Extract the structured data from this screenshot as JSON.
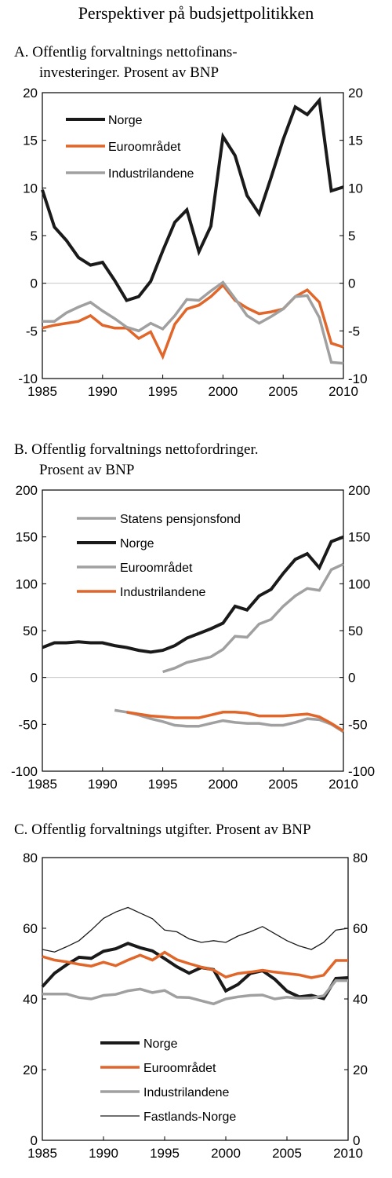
{
  "title": "Perspektiver på budsjettpolitikken",
  "chart_data": [
    {
      "type": "line",
      "title": "A.  Offentlig forvaltnings nettofinans-",
      "title2": "investeringer. Prosent av BNP",
      "xlim": [
        1985,
        2010
      ],
      "ylim": [
        -10,
        20
      ],
      "xticks": [
        "1985",
        "1990",
        "1995",
        "2000",
        "2005",
        "2010"
      ],
      "yticks": [
        "20",
        "15",
        "10",
        "5",
        "0",
        "-5",
        "-10"
      ],
      "grid": false,
      "legend_position": "top-left",
      "x": [
        1985,
        1986,
        1987,
        1988,
        1989,
        1990,
        1991,
        1992,
        1993,
        1994,
        1995,
        1996,
        1997,
        1998,
        1999,
        2000,
        2001,
        2002,
        2003,
        2004,
        2005,
        2006,
        2007,
        2008,
        2009,
        2010
      ],
      "series": [
        {
          "name": "Norge",
          "color": "#1a1a1a",
          "width": 4,
          "values": [
            9.8,
            5.9,
            4.5,
            2.7,
            1.9,
            2.2,
            0.3,
            -1.8,
            -1.4,
            0.2,
            3.4,
            6.4,
            7.7,
            3.3,
            6.0,
            15.4,
            13.4,
            9.2,
            7.3,
            11.1,
            15.1,
            18.5,
            17.7,
            19.2,
            9.7,
            10.1
          ]
        },
        {
          "name": "Euroområdet",
          "color": "#e0662a",
          "width": 3.5,
          "values": [
            -4.7,
            -4.4,
            -4.2,
            -4.0,
            -3.4,
            -4.4,
            -4.7,
            -4.7,
            -5.8,
            -5.1,
            -7.7,
            -4.3,
            -2.7,
            -2.3,
            -1.4,
            -0.2,
            -1.8,
            -2.6,
            -3.2,
            -3.0,
            -2.7,
            -1.4,
            -0.7,
            -2.0,
            -6.3,
            -6.7
          ]
        },
        {
          "name": "Industrilandene",
          "color": "#a0a0a0",
          "width": 3.5,
          "values": [
            -4.0,
            -4.0,
            -3.1,
            -2.5,
            -2.0,
            -2.9,
            -3.7,
            -4.6,
            -5.0,
            -4.2,
            -4.8,
            -3.4,
            -1.7,
            -1.8,
            -0.8,
            0.1,
            -1.6,
            -3.4,
            -4.2,
            -3.5,
            -2.7,
            -1.4,
            -1.3,
            -3.6,
            -8.3,
            -8.4
          ]
        }
      ]
    },
    {
      "type": "line",
      "title": "B.  Offentlig forvaltnings nettofordringer.",
      "title2": "Prosent av BNP",
      "xlim": [
        1985,
        2010
      ],
      "ylim": [
        -100,
        200
      ],
      "xticks": [
        "1985",
        "1990",
        "1995",
        "2000",
        "2005",
        "2010"
      ],
      "yticks": [
        "200",
        "150",
        "100",
        "50",
        "0",
        "-50",
        "-100"
      ],
      "grid": false,
      "legend_position": "top-left",
      "series": [
        {
          "name": "Statens pensjonsfond",
          "color": "#a0a0a0",
          "width": 3.5,
          "x": [
            1995,
            1996,
            1997,
            1998,
            1999,
            2000,
            2001,
            2002,
            2003,
            2004,
            2005,
            2006,
            2007,
            2008,
            2009,
            2010
          ],
          "values": [
            6,
            10,
            16,
            19,
            22,
            30,
            44,
            43,
            57,
            62,
            76,
            87,
            95,
            93,
            115,
            121
          ]
        },
        {
          "name": "Norge",
          "color": "#1a1a1a",
          "width": 4,
          "x": [
            1985,
            1986,
            1987,
            1988,
            1989,
            1990,
            1991,
            1992,
            1993,
            1994,
            1995,
            1996,
            1997,
            1998,
            1999,
            2000,
            2001,
            2002,
            2003,
            2004,
            2005,
            2006,
            2007,
            2008,
            2009,
            2010
          ],
          "values": [
            32,
            37,
            37,
            38,
            37,
            37,
            34,
            32,
            29,
            27,
            29,
            34,
            42,
            47,
            52,
            58,
            76,
            72,
            87,
            94,
            111,
            126,
            132,
            117,
            145,
            150
          ]
        },
        {
          "name": "Euroområdet",
          "color": "#a0a0a0",
          "width": 3.5,
          "x": [
            1991,
            1992,
            1993,
            1994,
            1995,
            1996,
            1997,
            1998,
            1999,
            2000,
            2001,
            2002,
            2003,
            2004,
            2005,
            2006,
            2007,
            2008,
            2009,
            2010
          ],
          "values": [
            -35,
            -37,
            -40,
            -44,
            -47,
            -51,
            -52,
            -52,
            -49,
            -46,
            -48,
            -49,
            -49,
            -51,
            -51,
            -48,
            -44,
            -45,
            -50,
            -58
          ]
        },
        {
          "name": "Industrilandene",
          "color": "#e0662a",
          "width": 3.5,
          "x": [
            1992,
            1993,
            1994,
            1995,
            1996,
            1997,
            1998,
            1999,
            2000,
            2001,
            2002,
            2003,
            2004,
            2005,
            2006,
            2007,
            2008,
            2009,
            2010
          ],
          "values": [
            -37,
            -39,
            -41,
            -42,
            -43,
            -43,
            -43,
            -40,
            -37,
            -37,
            -38,
            -41,
            -41,
            -41,
            -40,
            -39,
            -42,
            -49,
            -57
          ]
        }
      ]
    },
    {
      "type": "line",
      "title": "C.  Offentlig forvaltnings utgifter. Prosent av BNP",
      "xlim": [
        1985,
        2010
      ],
      "ylim": [
        0,
        80
      ],
      "xticks": [
        "1985",
        "1990",
        "1995",
        "2000",
        "2005",
        "2010"
      ],
      "yticks": [
        "80",
        "60",
        "40",
        "20",
        "0"
      ],
      "grid": false,
      "legend_position": "bottom-left",
      "x": [
        1985,
        1986,
        1987,
        1988,
        1989,
        1990,
        1991,
        1992,
        1993,
        1994,
        1995,
        1996,
        1997,
        1998,
        1999,
        2000,
        2001,
        2002,
        2003,
        2004,
        2005,
        2006,
        2007,
        2008,
        2009,
        2010
      ],
      "series": [
        {
          "name": "Norge",
          "color": "#1a1a1a",
          "width": 4,
          "values": [
            43.5,
            47.3,
            49.7,
            51.8,
            51.5,
            53.5,
            54.2,
            55.7,
            54.5,
            53.6,
            51.4,
            49.1,
            47.3,
            48.9,
            48.3,
            42.3,
            44.1,
            47.2,
            48.0,
            45.6,
            42.2,
            40.6,
            41.0,
            40.1,
            45.8,
            46.0
          ]
        },
        {
          "name": "Euroområdet",
          "color": "#e0662a",
          "width": 3.5,
          "values": [
            52.0,
            51.0,
            50.5,
            49.8,
            49.3,
            50.4,
            49.4,
            51.0,
            52.4,
            51.0,
            53.2,
            51.1,
            50.0,
            49.0,
            48.2,
            46.2,
            47.2,
            47.6,
            48.1,
            47.6,
            47.2,
            46.8,
            46.0,
            46.7,
            50.9,
            50.9
          ]
        },
        {
          "name": "Industrilandene",
          "color": "#a0a0a0",
          "width": 3.5,
          "values": [
            41.4,
            41.4,
            41.4,
            40.4,
            40.0,
            41.0,
            41.3,
            42.3,
            42.8,
            41.8,
            42.4,
            40.5,
            40.4,
            39.5,
            38.6,
            40.0,
            40.6,
            41.0,
            41.1,
            40.0,
            40.5,
            40.2,
            40.3,
            40.9,
            45.2,
            45.2
          ]
        },
        {
          "name": "Fastlands-Norge",
          "color": "#1a1a1a",
          "width": 1.3,
          "values": [
            54.0,
            53.3,
            54.8,
            56.5,
            59.5,
            62.8,
            64.6,
            65.9,
            64.3,
            62.7,
            59.5,
            59.0,
            57.0,
            56.0,
            56.5,
            56.0,
            57.8,
            59.0,
            60.5,
            58.5,
            56.5,
            55.0,
            54.0,
            56.0,
            59.5,
            60.0
          ]
        }
      ]
    }
  ]
}
